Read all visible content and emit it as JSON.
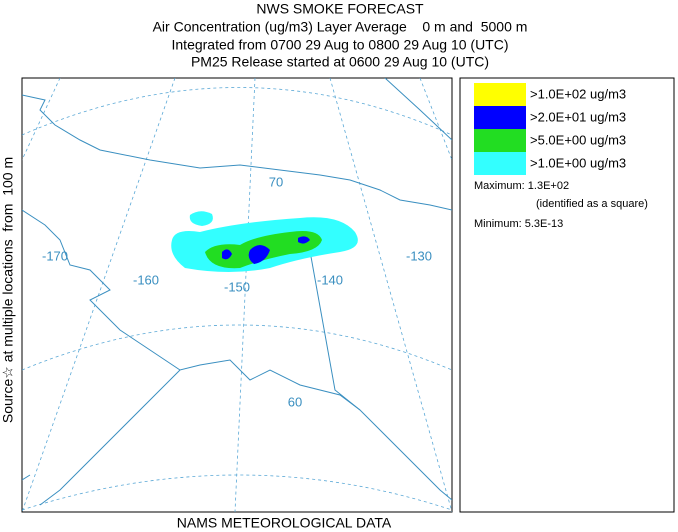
{
  "header": {
    "title": "NWS SMOKE FORECAST",
    "lines": [
      "Air Concentration (ug/m3) Layer Average    0 m and  5000 m",
      "Integrated from 0700 29 Aug to 0800 29 Aug 10 (UTC)",
      "PM25 Release started at 0600 29 Aug 10 (UTC)"
    ]
  },
  "side_label": "Source☆ at multiple locations  from  100 m",
  "map": {
    "labels": [
      "-170",
      "-160",
      "-150",
      "-140",
      "-130",
      "70",
      "60"
    ]
  },
  "legend": {
    "items": [
      {
        "label": ">1.0E+02 ug/m3",
        "color": "#ffff00"
      },
      {
        "label": ">2.0E+01 ug/m3",
        "color": "#0000ff"
      },
      {
        "label": ">5.0E+00 ug/m3",
        "color": "#22dd22"
      },
      {
        "label": ">1.0E+00 ug/m3",
        "color": "#33ffff"
      }
    ],
    "maximum": "Maximum: 1.3E+02",
    "maximum_note": "(identified as a square)",
    "minimum": "Minimum: 5.3E-13"
  },
  "footer": "NAMS METEOROLOGICAL DATA"
}
